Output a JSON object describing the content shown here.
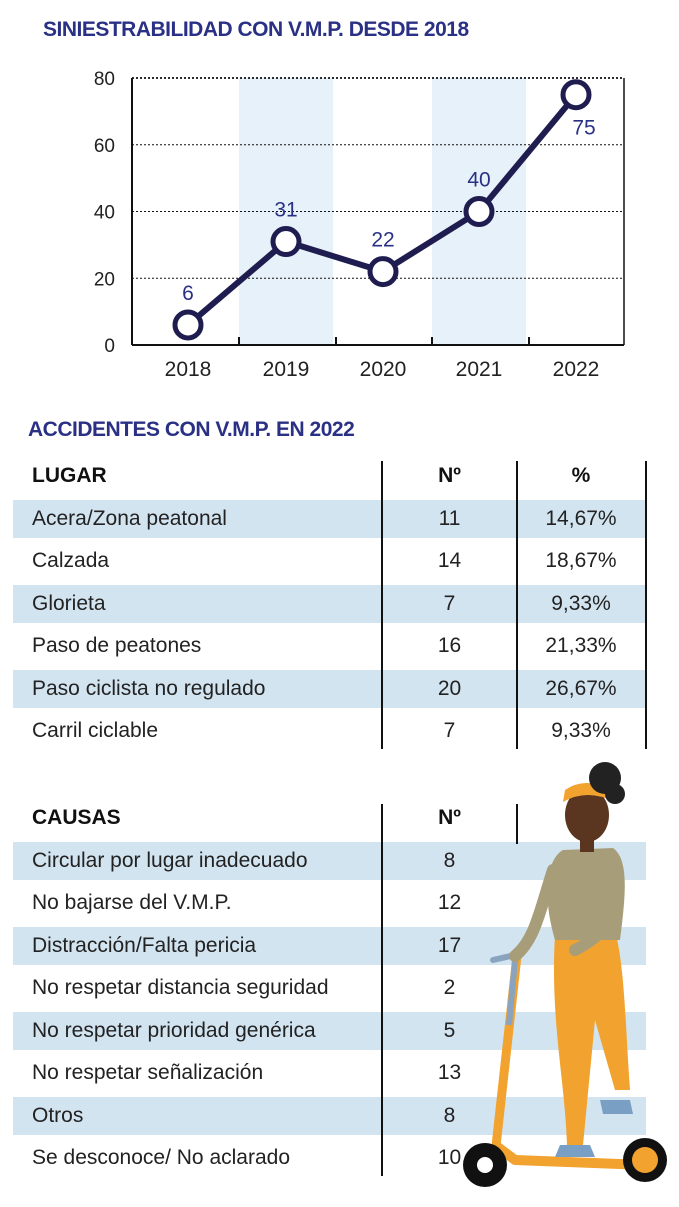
{
  "chart_data": {
    "type": "line",
    "title": "SINIESTRABILIDAD CON V.M.P. DESDE 2018",
    "categories": [
      "2018",
      "2019",
      "2020",
      "2021",
      "2022"
    ],
    "values": [
      6,
      31,
      22,
      40,
      75
    ],
    "data_labels": [
      "6",
      "31",
      "22",
      "40",
      "75"
    ],
    "ylim": [
      0,
      80
    ],
    "yticks": [
      "0",
      "20",
      "40",
      "60",
      "80"
    ],
    "grid": "horizontal dotted",
    "shaded_categories": [
      "2019",
      "2021"
    ],
    "colors": {
      "line": "#1f1d4f",
      "band": "#e6f1f9",
      "title": "#2a3185",
      "label": "#2a3185"
    }
  },
  "lugar_table": {
    "title": "ACCIDENTES CON V.M.P. EN 2022",
    "headers": [
      "LUGAR",
      "Nº",
      "%"
    ],
    "rows": [
      [
        "Acera/Zona peatonal",
        "11",
        "14,67%"
      ],
      [
        "Calzada",
        "14",
        "18,67%"
      ],
      [
        "Glorieta",
        "7",
        "9,33%"
      ],
      [
        "Paso de peatones",
        "16",
        "21,33%"
      ],
      [
        "Paso ciclista no regulado",
        "20",
        "26,67%"
      ],
      [
        "Carril ciclable",
        "7",
        "9,33%"
      ]
    ]
  },
  "causas_table": {
    "headers": [
      "CAUSAS",
      "Nº"
    ],
    "rows": [
      [
        "Circular por lugar inadecuado",
        "8"
      ],
      [
        "No bajarse del V.M.P.",
        "12"
      ],
      [
        "Distracción/Falta pericia",
        "17"
      ],
      [
        "No respetar distancia seguridad",
        "2"
      ],
      [
        "No respetar prioridad genérica",
        "5"
      ],
      [
        "No respetar señalización",
        "13"
      ],
      [
        "Otros",
        "8"
      ],
      [
        "Se desconoce/ No aclarado",
        "10"
      ]
    ]
  },
  "colors": {
    "row_band": "#d3e4f1",
    "scooter": "#f2a22e"
  }
}
